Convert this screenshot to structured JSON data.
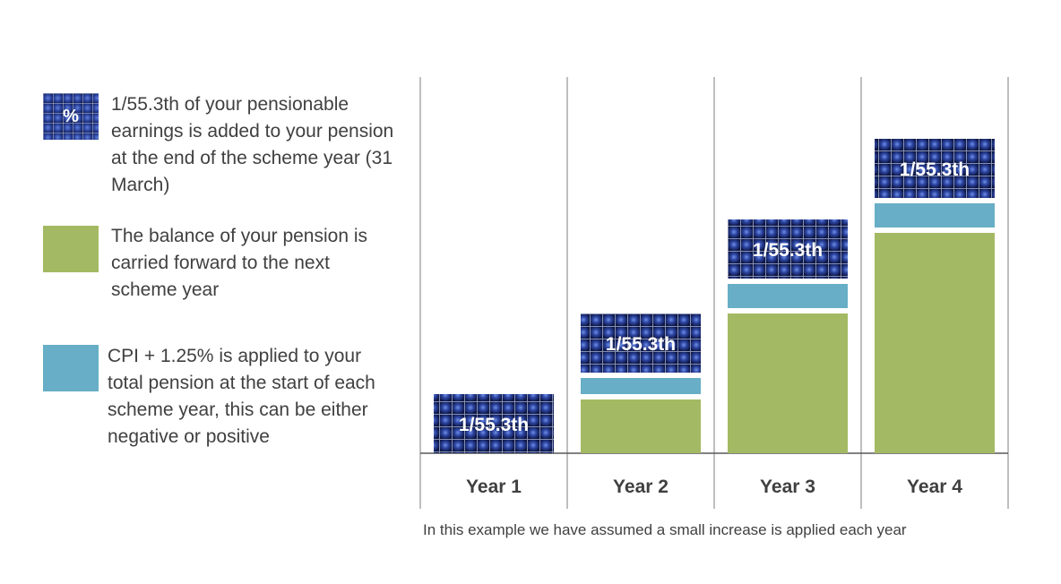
{
  "legend": [
    {
      "swatch": "pattern",
      "swatch_label": "%",
      "text": "1/55.3th of your pensionable earnings is added to your pension at the end of the scheme year (31 March)"
    },
    {
      "swatch": "green",
      "text": "The balance of your pension is carried forward to the next scheme year"
    },
    {
      "swatch": "blue",
      "text": "CPI + 1.25% is applied to your total pension at the start of each scheme year, this can be either negative or positive"
    }
  ],
  "colors": {
    "green": "#a4b963",
    "blue": "#67aec6",
    "pattern_dark": "#0f1a4e",
    "pattern_light": "#5f7fd8",
    "grid": "#7f7f7f"
  },
  "chart_data": {
    "type": "bar",
    "stacked": true,
    "categories": [
      "Year 1",
      "Year 2",
      "Year 3",
      "Year 4"
    ],
    "series": [
      {
        "key": "balance",
        "values": [
          0,
          1.0,
          2.6,
          4.1
        ]
      },
      {
        "key": "cpi",
        "values": [
          0,
          0.3,
          0.45,
          0.45
        ]
      },
      {
        "key": "accrual",
        "values": [
          1.0,
          1.0,
          1.0,
          1.0
        ],
        "label": "1/55.3th"
      }
    ],
    "bar_label": "1/55.3th",
    "grid": false
  },
  "footnote": "In this example we have assumed a small increase is applied each year"
}
